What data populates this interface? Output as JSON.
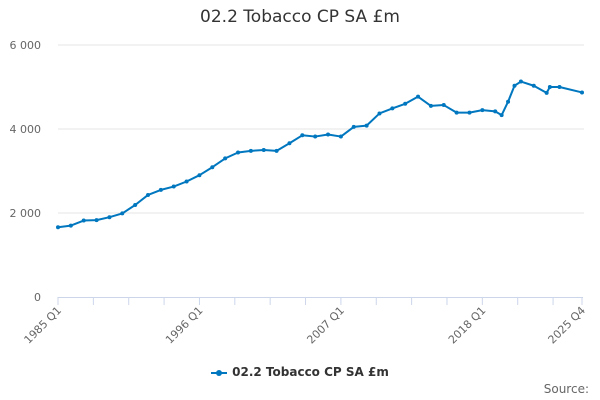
{
  "chart_data": {
    "type": "line",
    "title": "02.2 Tobacco CP SA £m",
    "xlabel": "",
    "ylabel": "",
    "ylim": [
      0,
      6000
    ],
    "yticks": [
      0,
      2000,
      4000,
      6000
    ],
    "ytick_labels": [
      "0",
      "2 000",
      "4 000",
      "6 000"
    ],
    "xtick_labels": [
      "1985 Q1",
      "1996 Q1",
      "2007 Q1",
      "2018 Q1",
      "2025 Q4"
    ],
    "grid": true,
    "legend_placement": "bottom-center",
    "color": "#0077bf",
    "series": [
      {
        "name": "02.2 Tobacco CP SA £m",
        "x": [
          "1985 Q1",
          "1986 Q1",
          "1987 Q1",
          "1988 Q1",
          "1989 Q1",
          "1990 Q1",
          "1991 Q1",
          "1992 Q1",
          "1993 Q1",
          "1994 Q1",
          "1995 Q1",
          "1996 Q1",
          "1997 Q1",
          "1998 Q1",
          "1999 Q1",
          "2000 Q1",
          "2001 Q1",
          "2002 Q1",
          "2003 Q1",
          "2004 Q1",
          "2005 Q1",
          "2006 Q1",
          "2007 Q1",
          "2008 Q1",
          "2009 Q1",
          "2010 Q1",
          "2011 Q1",
          "2012 Q1",
          "2013 Q1",
          "2014 Q1",
          "2015 Q1",
          "2016 Q1",
          "2017 Q1",
          "2018 Q1",
          "2019 Q1",
          "2019 Q3",
          "2020 Q1",
          "2020 Q3",
          "2021 Q1",
          "2022 Q1",
          "2023 Q1",
          "2023 Q2",
          "2024 Q1",
          "2025 Q4"
        ],
        "values": [
          1660,
          1700,
          1820,
          1830,
          1900,
          1990,
          2190,
          2430,
          2550,
          2630,
          2750,
          2900,
          3090,
          3300,
          3440,
          3480,
          3500,
          3480,
          3660,
          3850,
          3820,
          3870,
          3820,
          4050,
          4080,
          4370,
          4490,
          4600,
          4770,
          4550,
          4570,
          4390,
          4390,
          4450,
          4420,
          4330,
          4650,
          5030,
          5130,
          5030,
          4860,
          5000,
          5000,
          4870
        ]
      }
    ]
  },
  "source_label": "Source:"
}
